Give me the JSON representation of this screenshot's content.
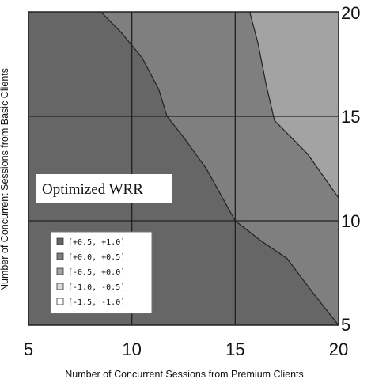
{
  "chart_data": {
    "type": "heatmap",
    "subtype": "contour",
    "title": "",
    "annotation": "Optimized WRR",
    "xlabel": "Number of Concurrent Sessions from Premium Clients",
    "ylabel": "Number of Concurrent Sessions from Basic Clients",
    "xlim": [
      5,
      20
    ],
    "ylim": [
      5,
      20
    ],
    "x_ticks": [
      "5",
      "10",
      "15",
      "20"
    ],
    "y_ticks": [
      "5",
      "10",
      "15",
      "20"
    ],
    "grid": true,
    "legend_position": "lower-left",
    "levels": [
      {
        "label": "[+0.5, +1.0]",
        "color": "#666666"
      },
      {
        "label": "[+0.0, +0.5]",
        "color": "#7f7f7f"
      },
      {
        "label": "[-0.5, +0.0]",
        "color": "#a3a3a3"
      },
      {
        "label": "[-1.0, -0.5]",
        "color": "#dcdcdc"
      },
      {
        "label": "[-1.5, -1.0]",
        "color": "#ffffff"
      }
    ],
    "regions": [
      {
        "level": "[+0.5, +1.0]",
        "note": "lower-left region below the first boundary"
      },
      {
        "level": "[+0.0, +0.5]",
        "note": "band between the two boundaries"
      },
      {
        "level": "[-0.5, +0.0]",
        "note": "upper-right region above the second boundary"
      }
    ],
    "boundaries": [
      {
        "name": "b1",
        "points": [
          [
            8.5,
            20
          ],
          [
            9.5,
            19
          ],
          [
            10.5,
            17.8
          ],
          [
            11.3,
            16.3
          ],
          [
            11.7,
            15
          ],
          [
            12.5,
            14
          ],
          [
            13.6,
            12.5
          ],
          [
            15,
            10
          ],
          [
            16.3,
            9
          ],
          [
            17.5,
            8.2
          ],
          [
            18.8,
            6.5
          ],
          [
            20,
            5
          ]
        ]
      },
      {
        "name": "b2",
        "points": [
          [
            15.7,
            20
          ],
          [
            16.1,
            18.5
          ],
          [
            16.5,
            16.5
          ],
          [
            16.9,
            14.8
          ],
          [
            18.5,
            13.2
          ],
          [
            20,
            11.1
          ]
        ]
      }
    ]
  }
}
